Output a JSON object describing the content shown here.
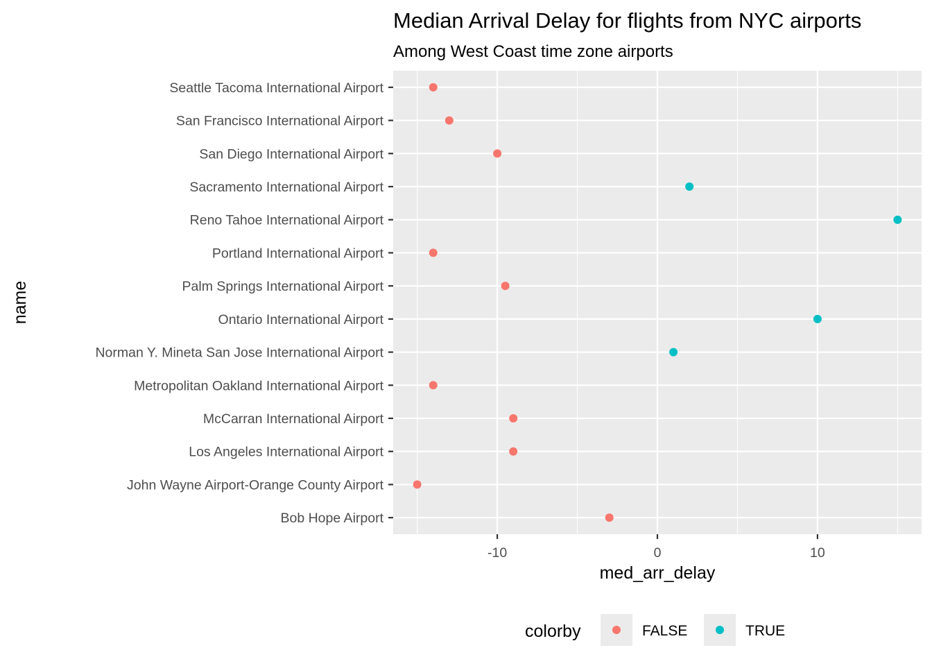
{
  "chart_data": {
    "type": "scatter",
    "title": "Median Arrival Delay for flights from NYC airports",
    "subtitle": "Among West Coast time zone airports",
    "xlabel": "med_arr_delay",
    "ylabel": "name",
    "xlim": [
      -16.5,
      16.5
    ],
    "x_ticks": [
      -10,
      0,
      10
    ],
    "x_tick_labels": [
      "-10",
      "0",
      "10"
    ],
    "x_minor_breaks": [
      -15,
      -5,
      5,
      15
    ],
    "grid": true,
    "legend": {
      "title": "colorby",
      "position": "bottom",
      "entries": [
        {
          "label": "FALSE",
          "color": "#F8766D"
        },
        {
          "label": "TRUE",
          "color": "#00BFC4"
        }
      ]
    },
    "categories": [
      "Bob Hope Airport",
      "John Wayne Airport-Orange County Airport",
      "Los Angeles International Airport",
      "McCarran International Airport",
      "Metropolitan Oakland International Airport",
      "Norman Y. Mineta San Jose International Airport",
      "Ontario International Airport",
      "Palm Springs International Airport",
      "Portland International Airport",
      "Reno Tahoe International Airport",
      "Sacramento International Airport",
      "San Diego International Airport",
      "San Francisco International Airport",
      "Seattle Tacoma International Airport"
    ],
    "points": [
      {
        "name": "Bob Hope Airport",
        "x": -3,
        "colorby": "FALSE"
      },
      {
        "name": "John Wayne Airport-Orange County Airport",
        "x": -15,
        "colorby": "FALSE"
      },
      {
        "name": "Los Angeles International Airport",
        "x": -9,
        "colorby": "FALSE"
      },
      {
        "name": "McCarran International Airport",
        "x": -9,
        "colorby": "FALSE"
      },
      {
        "name": "Metropolitan Oakland International Airport",
        "x": -14,
        "colorby": "FALSE"
      },
      {
        "name": "Norman Y. Mineta San Jose International Airport",
        "x": 1,
        "colorby": "TRUE"
      },
      {
        "name": "Ontario International Airport",
        "x": 10,
        "colorby": "TRUE"
      },
      {
        "name": "Palm Springs International Airport",
        "x": -9.5,
        "colorby": "FALSE"
      },
      {
        "name": "Portland International Airport",
        "x": -14,
        "colorby": "FALSE"
      },
      {
        "name": "Reno Tahoe International Airport",
        "x": 15,
        "colorby": "TRUE"
      },
      {
        "name": "Sacramento International Airport",
        "x": 2,
        "colorby": "TRUE"
      },
      {
        "name": "San Diego International Airport",
        "x": -10,
        "colorby": "FALSE"
      },
      {
        "name": "San Francisco International Airport",
        "x": -13,
        "colorby": "FALSE"
      },
      {
        "name": "Seattle Tacoma International Airport",
        "x": -14,
        "colorby": "FALSE"
      }
    ]
  }
}
